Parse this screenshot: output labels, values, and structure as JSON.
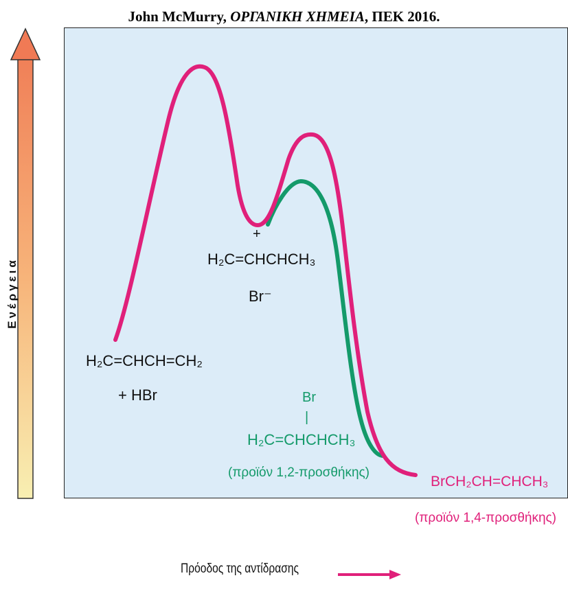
{
  "citation": {
    "author": "John McMurry, ",
    "title": "ΟΡΓΑΝΙΚΗ ΧΗΜΕΙΑ",
    "publisher": ", ΠΕΚ 2016."
  },
  "axes": {
    "y_label": "Ενέργεια",
    "x_label": "Πρόοδος της αντίδρασης"
  },
  "colors": {
    "pathway_1_4": "#e0207a",
    "pathway_1_2": "#149a6a",
    "panel_background": "#dcecf8",
    "energy_arrow_top": "#f08058",
    "energy_arrow_bottom": "#f8efb2"
  },
  "labels": {
    "reactants": {
      "line1": "H₂C=CHCH=CH₂",
      "line2": "+  HBr"
    },
    "intermediate": {
      "charge": "+",
      "formula": "H₂C=CHCHCH₃",
      "counterion": "Br⁻"
    },
    "product_1_2": {
      "substituent": "Br",
      "bond": "|",
      "formula": "H₂C=CHCHCH₃",
      "caption": "(προϊόν 1,2-προσθήκης)"
    },
    "product_1_4": {
      "formula": "BrCH₂CH=CHCH₃",
      "caption": "(προϊόν 1,4-προσθήκης)"
    }
  }
}
